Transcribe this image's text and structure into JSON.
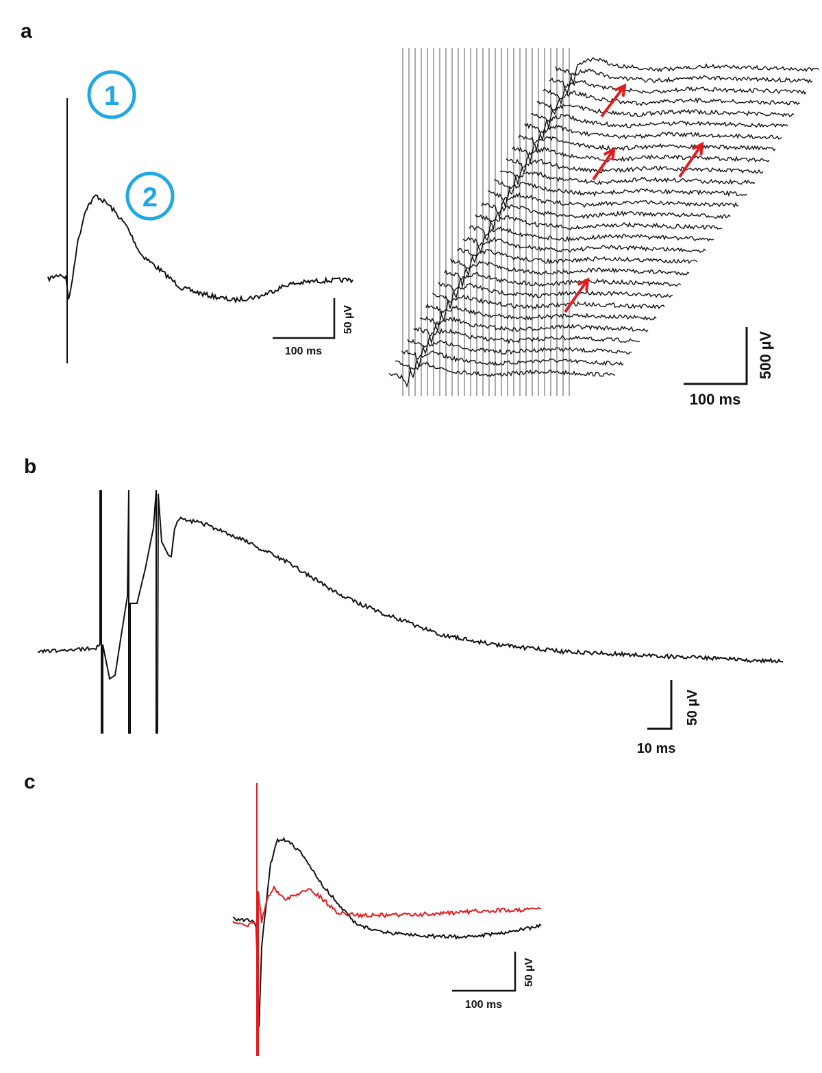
{
  "panels": {
    "a": {
      "label": "a",
      "markers": [
        {
          "text": "1",
          "color": "#1EA9E6"
        },
        {
          "text": "2",
          "color": "#1EA9E6"
        }
      ],
      "scalebar_left": {
        "time": "100 ms",
        "amplitude": "50 µV"
      },
      "scalebar_right": {
        "time": "100 ms",
        "amplitude": "500 µV"
      },
      "arrow_color": "#E41A1C",
      "sweep_count": 28
    },
    "b": {
      "label": "b",
      "scalebar": {
        "time": "10 ms",
        "amplitude": "50 µV"
      }
    },
    "c": {
      "label": "c",
      "scalebar": {
        "time": "100 ms",
        "amplitude": "50 µV"
      },
      "trace_colors": [
        "#111111",
        "#E41A1C"
      ]
    }
  }
}
